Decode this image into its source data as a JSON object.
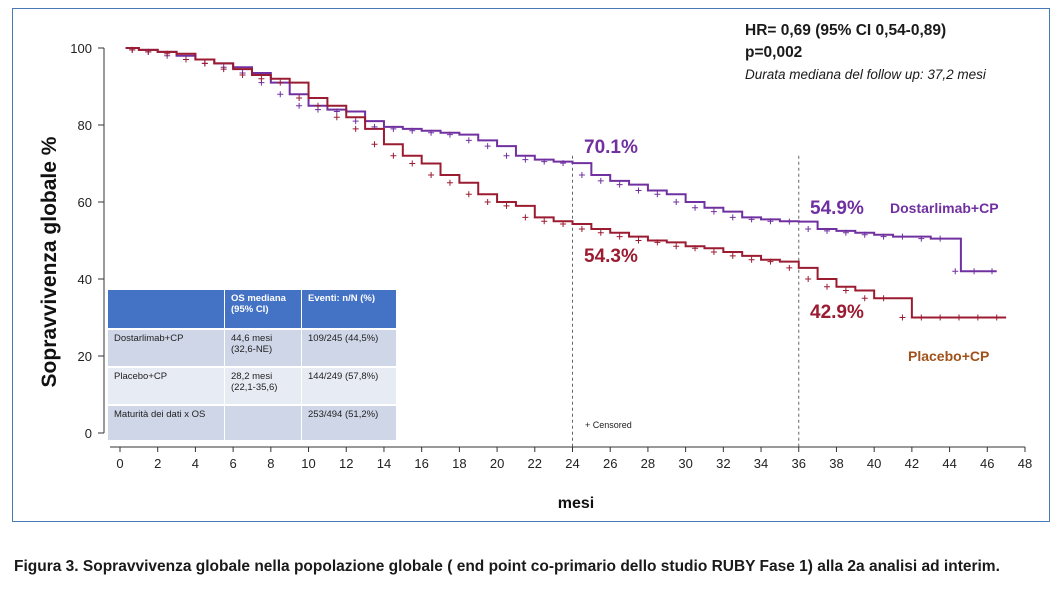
{
  "chart_data": {
    "type": "line",
    "title": "",
    "xlabel": "mesi",
    "ylabel": "Sopravvivenza globale %",
    "xlim": [
      0,
      48
    ],
    "ylim": [
      0,
      100
    ],
    "xticks": [
      "0",
      "2",
      "4",
      "6",
      "8",
      "10",
      "12",
      "14",
      "16",
      "18",
      "20",
      "22",
      "24",
      "26",
      "28",
      "30",
      "32",
      "34",
      "36",
      "38",
      "40",
      "42",
      "44",
      "46",
      "48"
    ],
    "yticks": [
      "0",
      "20",
      "40",
      "60",
      "80",
      "100"
    ],
    "grid": false,
    "colors": {
      "dostarlimab": "#7030a0",
      "placebo": "#9b1b30",
      "dostarlimab_label": "#7030a0",
      "placebo_label": "#a0521a"
    },
    "series": [
      {
        "name": "Dostarlimab+CP",
        "x": [
          0.3,
          1,
          2,
          3,
          4,
          5,
          6,
          7,
          8,
          9,
          10,
          11,
          12,
          13,
          14,
          15,
          16,
          17,
          18,
          19,
          20,
          21,
          22,
          23,
          24,
          25,
          26,
          27,
          28,
          29,
          30,
          31,
          32,
          33,
          34,
          35,
          36,
          37,
          38,
          39,
          40,
          41,
          42,
          43,
          44,
          44.6,
          46,
          46.5
        ],
        "y": [
          100,
          99.5,
          99,
          98,
          97,
          96,
          95,
          93.5,
          91,
          88,
          85,
          84,
          83.5,
          81,
          79.5,
          79,
          78.5,
          78,
          77.5,
          76,
          74.5,
          72,
          71,
          70.5,
          70.1,
          67,
          65.5,
          64.5,
          63,
          62,
          60,
          58.5,
          57.5,
          56,
          55.5,
          55,
          54.9,
          53,
          52.5,
          52,
          51.5,
          51,
          51,
          50.5,
          50.5,
          42,
          42,
          42
        ]
      },
      {
        "name": "Placebo+CP",
        "x": [
          0.3,
          1,
          2,
          3,
          4,
          5,
          6,
          7,
          8,
          9,
          10,
          11,
          12,
          13,
          14,
          15,
          16,
          17,
          18,
          19,
          20,
          21,
          22,
          23,
          24,
          25,
          26,
          27,
          28,
          29,
          30,
          31,
          32,
          33,
          34,
          35,
          36,
          37,
          38,
          39,
          40,
          41,
          42,
          43,
          44,
          45,
          46,
          47
        ],
        "y": [
          100,
          99.5,
          99,
          98.5,
          97,
          96,
          94.5,
          93,
          92,
          91,
          87,
          85,
          82,
          79,
          75,
          72,
          70,
          67,
          65,
          62,
          60,
          59,
          56,
          55,
          54.3,
          53,
          52,
          51,
          50,
          49.5,
          48.5,
          48,
          47,
          46,
          45,
          44.5,
          42.9,
          40,
          38,
          37,
          35,
          35,
          30,
          30,
          30,
          30,
          30,
          30
        ]
      }
    ],
    "annotations": {
      "dostarlimab_24": "70.1%",
      "placebo_24": "54.3%",
      "dostarlimab_36": "54.9%",
      "placebo_36": "42.9%",
      "censored": "+ Censored"
    },
    "legend": "right",
    "series_labels": {
      "dostarlimab": "Dostarlimab+CP",
      "placebo": "Placebo+CP"
    }
  },
  "stats": {
    "hr": "HR= 0,69 (95% CI 0,54-0,89)",
    "p": "p=0,002",
    "followup": "Durata mediana del follow up: 37,2 mesi"
  },
  "table": {
    "headers": [
      "",
      "OS mediana (95% CI)",
      "Eventi: n/N (%)"
    ],
    "rows": [
      {
        "label": "Dostarlimab+CP",
        "os": "44,6 mesi (32,6-NE)",
        "events": "109/245 (44,5%)"
      },
      {
        "label": "Placebo+CP",
        "os": "28,2 mesi (22,1-35,6)",
        "events": "144/249 (57,8%)"
      },
      {
        "label": "Maturità dei dati x OS",
        "os": "",
        "events": "253/494 (51,2%)"
      }
    ]
  },
  "caption": "Figura 3. Sopravvivenza globale nella popolazione globale ( end point co-primario dello studio RUBY Fase 1) alla 2a analisi ad interim."
}
